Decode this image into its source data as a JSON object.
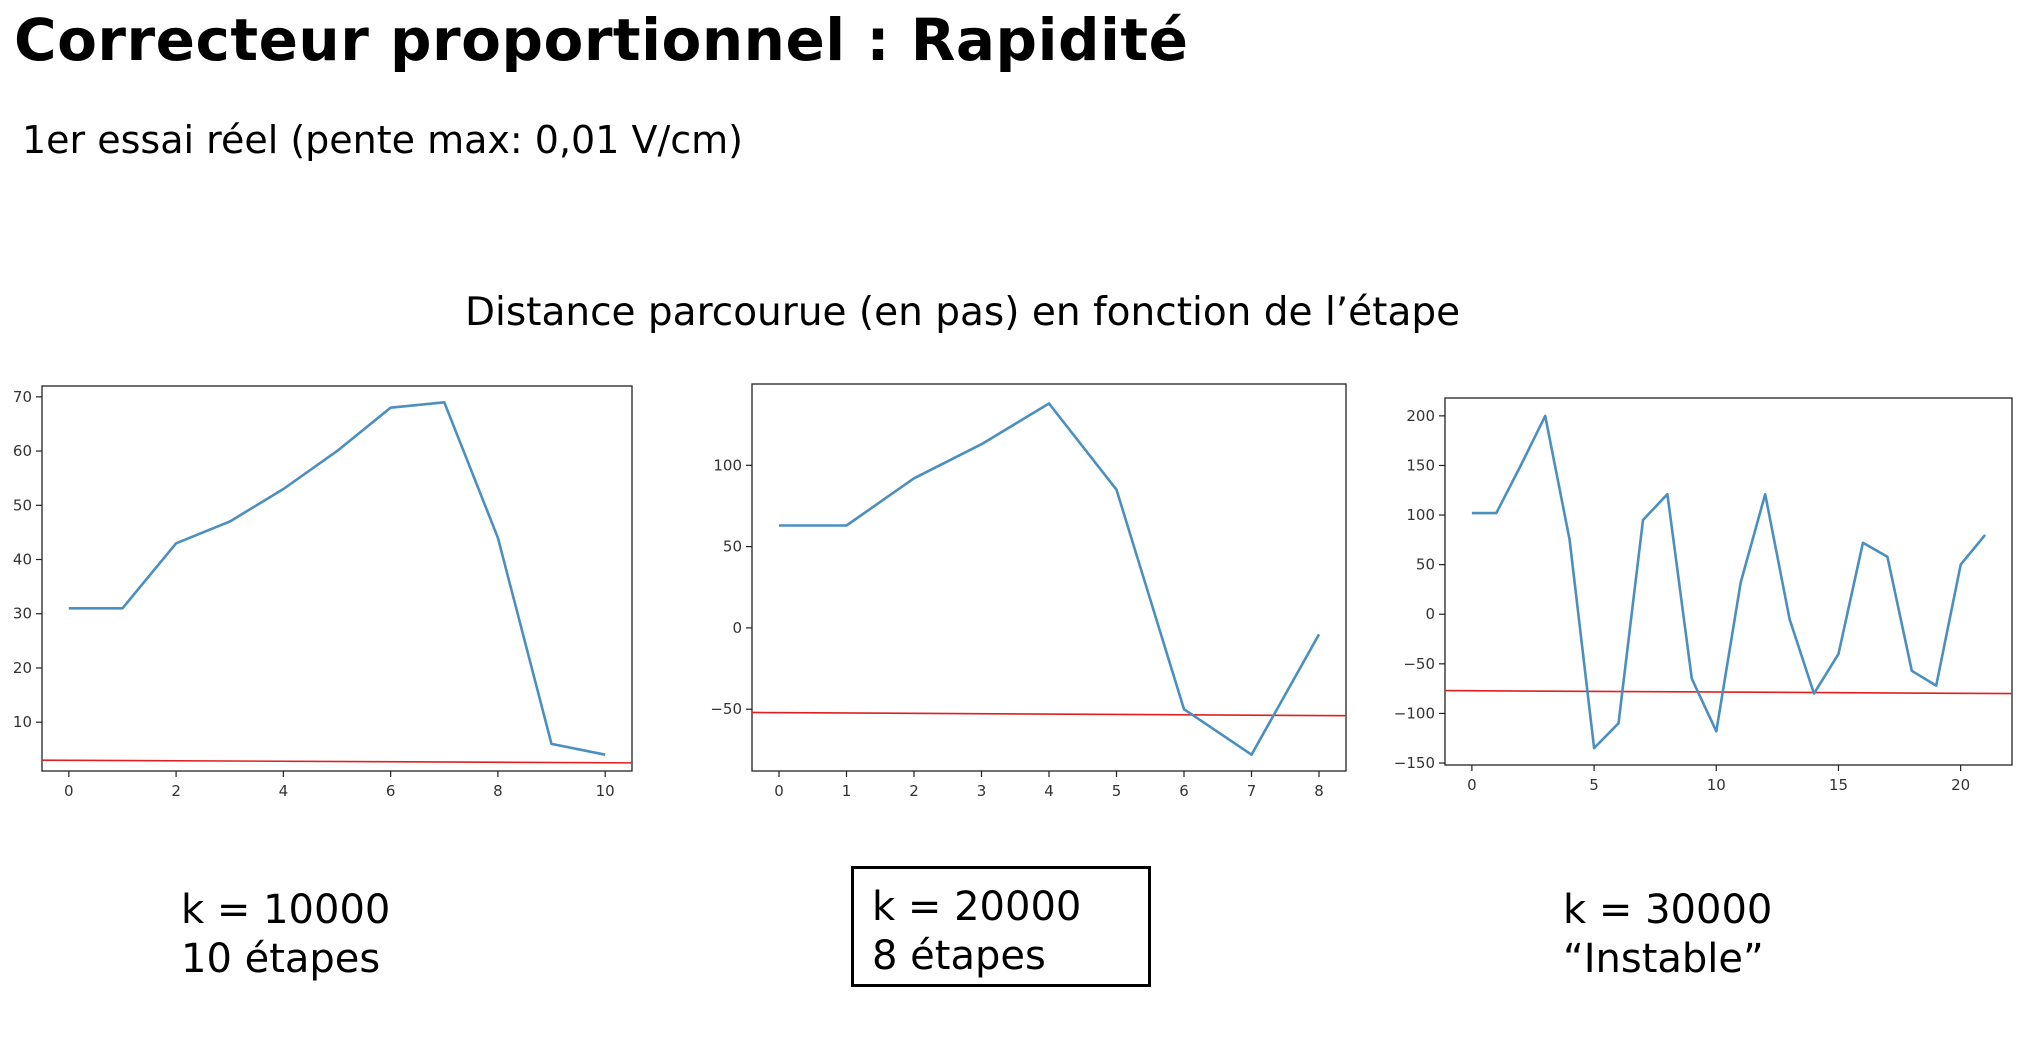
{
  "slide": {
    "title": "Correcteur proportionnel : Rapidité",
    "subtitle": "1er essai réel  (pente max: 0,01 V/cm)",
    "heading": "Distance parcourue (en pas) en fonction de l’étape"
  },
  "captions": [
    {
      "line1": "k = 10000",
      "line2": "10 étapes",
      "boxed": false
    },
    {
      "line1": "k = 20000",
      "line2": "8 étapes",
      "boxed": true
    },
    {
      "line1": "k = 30000",
      "line2": "“Instable”",
      "boxed": false
    }
  ],
  "colors": {
    "series": "#4a8fbf",
    "reference": "#e02020",
    "axes": "#222222"
  },
  "chart_data": [
    {
      "type": "line",
      "title": "",
      "xlabel": "",
      "ylabel": "",
      "xlim": [
        -0.5,
        10.5
      ],
      "ylim": [
        1,
        72
      ],
      "xticks": [
        0,
        2,
        4,
        6,
        8,
        10
      ],
      "yticks": [
        10,
        20,
        30,
        40,
        50,
        60,
        70
      ],
      "series": [
        {
          "x": [
            0,
            1,
            2,
            3,
            4,
            5,
            6,
            7,
            8,
            9,
            10
          ],
          "y": [
            31,
            31,
            43,
            47,
            53,
            60,
            68,
            69,
            44,
            6,
            4
          ]
        }
      ],
      "reference_line": {
        "x": [
          -0.5,
          10.5
        ],
        "y": [
          3,
          2.5
        ]
      }
    },
    {
      "type": "line",
      "title": "",
      "xlabel": "",
      "ylabel": "",
      "xlim": [
        -0.4,
        8.4
      ],
      "ylim": [
        -88,
        150
      ],
      "xticks": [
        0,
        1,
        2,
        3,
        4,
        5,
        6,
        7,
        8
      ],
      "yticks": [
        -50,
        0,
        50,
        100
      ],
      "series": [
        {
          "x": [
            0,
            1,
            2,
            3,
            4,
            5,
            6,
            7,
            8
          ],
          "y": [
            63,
            63,
            92,
            113,
            138,
            85,
            -50,
            -78,
            -4
          ]
        }
      ],
      "reference_line": {
        "x": [
          -0.4,
          8.4
        ],
        "y": [
          -52,
          -54
        ]
      }
    },
    {
      "type": "line",
      "title": "",
      "xlabel": "",
      "ylabel": "",
      "xlim": [
        -1.1,
        22.1
      ],
      "ylim": [
        -152,
        218
      ],
      "xticks": [
        0,
        5,
        10,
        15,
        20
      ],
      "yticks": [
        -150,
        -100,
        -50,
        0,
        50,
        100,
        150,
        200
      ],
      "series": [
        {
          "x": [
            0,
            1,
            2,
            3,
            4,
            5,
            6,
            7,
            8,
            9,
            10,
            11,
            12,
            13,
            14,
            15,
            16,
            17,
            18,
            19,
            20,
            21
          ],
          "y": [
            102,
            102,
            150,
            200,
            75,
            -135,
            -110,
            95,
            121,
            -65,
            -118,
            32,
            121,
            -5,
            -80,
            -40,
            72,
            58,
            -57,
            -72,
            50,
            80
          ]
        }
      ],
      "reference_line": {
        "x": [
          -1.1,
          22.1
        ],
        "y": [
          -77,
          -80
        ]
      }
    }
  ]
}
